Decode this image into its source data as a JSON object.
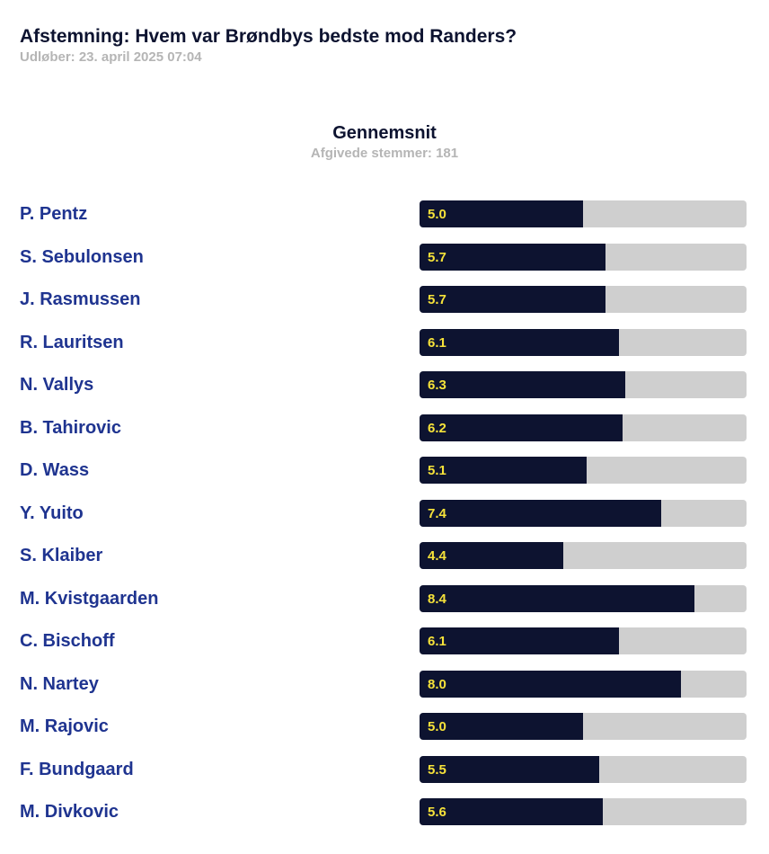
{
  "header": {
    "title": "Afstemning: Hvem var Brøndbys bedste mod Randers?",
    "expiry": "Udløber: 23. april 2025 07:04"
  },
  "summary": {
    "title": "Gennemsnit",
    "votes": "Afgivede stemmer: 181"
  },
  "colors": {
    "bar_fill": "#0d1330",
    "bar_track": "#cfcfcf",
    "value_text": "#f6e23a",
    "name_text": "#1f3490"
  },
  "chart_data": {
    "type": "bar",
    "orientation": "horizontal",
    "scale_max": 10,
    "categories": [
      "P. Pentz",
      "S. Sebulonsen",
      "J. Rasmussen",
      "R. Lauritsen",
      "N. Vallys",
      "B. Tahirovic",
      "D. Wass",
      "Y. Yuito",
      "S. Klaiber",
      "M. Kvistgaarden",
      "C. Bischoff",
      "N. Nartey",
      "M. Rajovic",
      "F. Bundgaard",
      "M. Divkovic"
    ],
    "values": [
      5.0,
      5.7,
      5.7,
      6.1,
      6.3,
      6.2,
      5.1,
      7.4,
      4.4,
      8.4,
      6.1,
      8.0,
      5.0,
      5.5,
      5.6
    ],
    "value_labels": [
      "5.0",
      "5.7",
      "5.7",
      "6.1",
      "6.3",
      "6.2",
      "5.1",
      "7.4",
      "4.4",
      "8.4",
      "6.1",
      "8.0",
      "5.0",
      "5.5",
      "5.6"
    ]
  }
}
